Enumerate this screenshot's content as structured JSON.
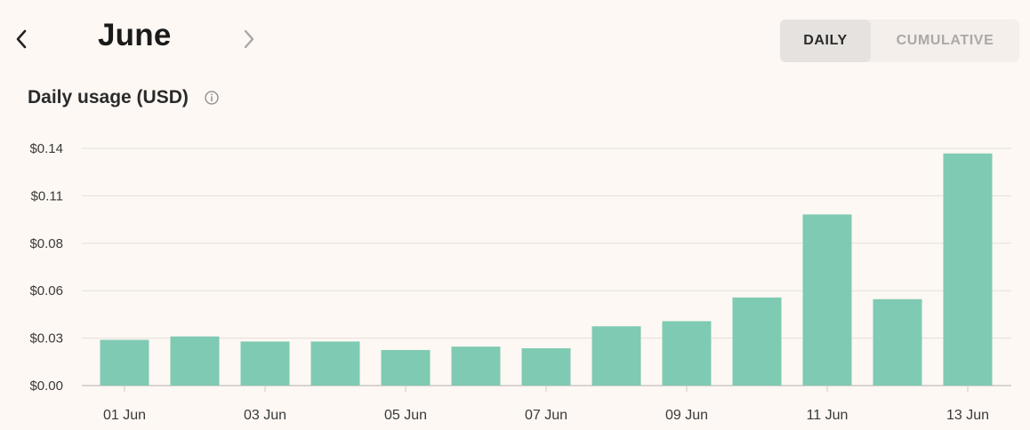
{
  "header": {
    "month": "June",
    "prev_icon": "chevron-left-icon",
    "next_icon": "chevron-right-icon"
  },
  "toggle": {
    "daily_label": "DAILY",
    "cumulative_label": "CUMULATIVE",
    "selected": "DAILY"
  },
  "colors": {
    "bar": "#7fcab2",
    "grid": "#e4dfdb",
    "background": "#fdf8f4"
  },
  "chart_data": {
    "type": "bar",
    "title": "Daily usage (USD)",
    "title_icon": "info-icon",
    "categories": [
      "01 Jun",
      "02 Jun",
      "03 Jun",
      "04 Jun",
      "05 Jun",
      "06 Jun",
      "07 Jun",
      "08 Jun",
      "09 Jun",
      "10 Jun",
      "11 Jun",
      "12 Jun",
      "13 Jun"
    ],
    "values": [
      0.027,
      0.029,
      0.026,
      0.026,
      0.021,
      0.023,
      0.022,
      0.035,
      0.038,
      0.052,
      0.101,
      0.051,
      0.137
    ],
    "x_tick_labels": [
      "01 Jun",
      "03 Jun",
      "05 Jun",
      "07 Jun",
      "09 Jun",
      "11 Jun",
      "13 Jun"
    ],
    "y_ticks": [
      0,
      0.028,
      0.056,
      0.084,
      0.112,
      0.14
    ],
    "y_tick_labels": [
      "$0.00",
      "$0.03",
      "$0.06",
      "$0.08",
      "$0.11",
      "$0.14"
    ],
    "ylim": [
      0,
      0.14
    ],
    "grid": true,
    "legend": "none"
  }
}
